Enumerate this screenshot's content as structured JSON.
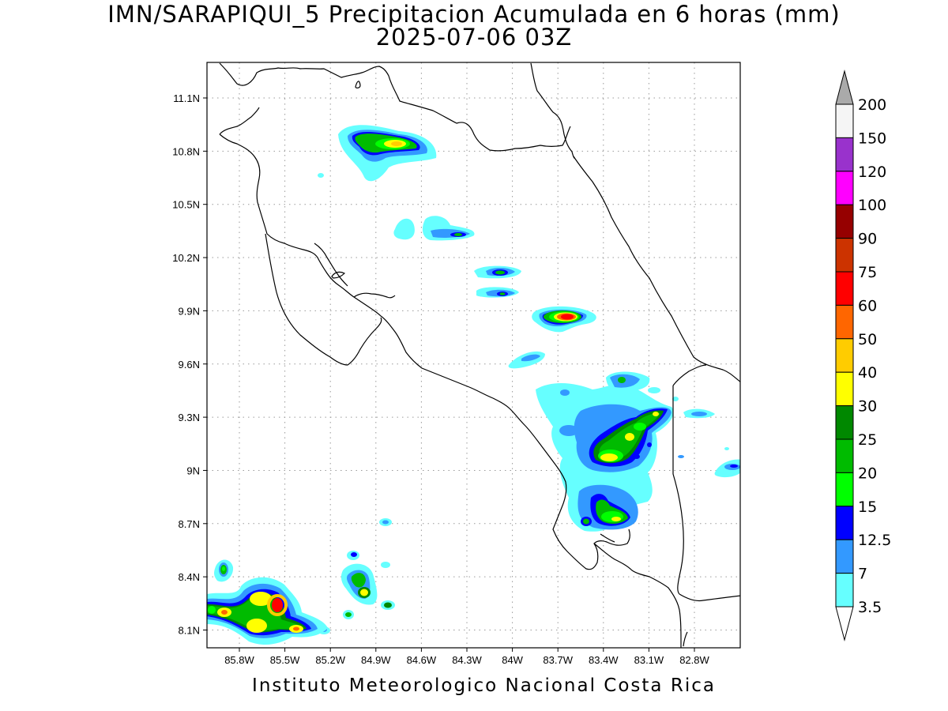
{
  "title": {
    "line1": "IMN/SARAPIQUI_5 Precipitacion Acumulada en 6 horas (mm)",
    "line2": "2025-07-06 03Z"
  },
  "map": {
    "lat_ticks": [
      "11.1N",
      "10.8N",
      "10.5N",
      "10.2N",
      "9.9N",
      "9.6N",
      "9.3N",
      "9N",
      "8.7N",
      "8.4N",
      "8.1N"
    ],
    "lon_ticks": [
      "85.8W",
      "85.5W",
      "85.2W",
      "84.9W",
      "84.6W",
      "84.3W",
      "84W",
      "83.7W",
      "83.4W",
      "83.1W",
      "82.8W"
    ],
    "grid": "dotted"
  },
  "colorbar": {
    "labels": [
      "200",
      "150",
      "120",
      "100",
      "90",
      "75",
      "60",
      "50",
      "40",
      "30",
      "25",
      "20",
      "15",
      "12.5",
      "7",
      "3.5"
    ],
    "colors": [
      "#aaaaaa",
      "#f5f5f5",
      "#9932cc",
      "#ff00ff",
      "#960000",
      "#cc3300",
      "#ff0000",
      "#ff6600",
      "#ffcc00",
      "#ffff00",
      "#008800",
      "#00bb00",
      "#00ff00",
      "#0000ff",
      "#3399ff",
      "#66ffff"
    ]
  },
  "footer": "Instituto Meteorologico Nacional Costa Rica"
}
